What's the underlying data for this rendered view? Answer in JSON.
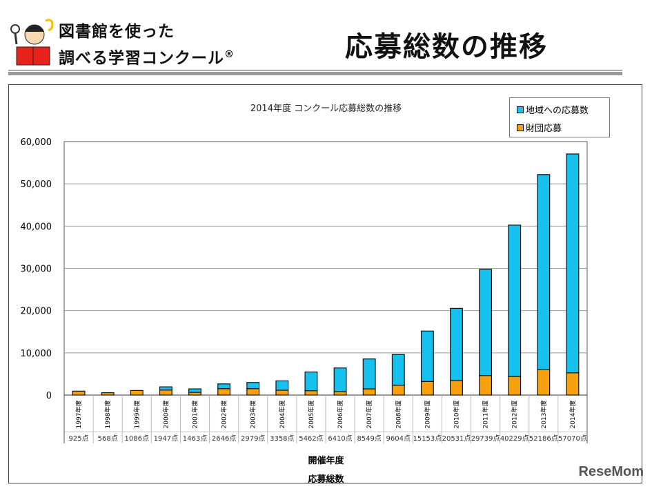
{
  "header": {
    "title_line1": "図書館を使った",
    "title_line2": "調べる学習コンクール",
    "registered": "®",
    "slide_title": "応募総数の推移"
  },
  "watermark": "ReseMom",
  "chart_data": {
    "type": "bar",
    "stacked": true,
    "title": "2014年度 コンクール応募総数の推移",
    "xlabel": "開催年度",
    "table_label": "応募総数",
    "ylim": [
      0,
      60000
    ],
    "yticks": [
      "0",
      "10,000",
      "20,000",
      "30,000",
      "40,000",
      "50,000",
      "60,000"
    ],
    "grid": true,
    "legend_position": "top-right",
    "categories": [
      "1997年度",
      "1998年度",
      "1999年度",
      "2000年度",
      "2001年度",
      "2002年度",
      "2003年度",
      "2004年度",
      "2005年度",
      "2006年度",
      "2007年度",
      "2008年度",
      "2009年度",
      "2010年度",
      "2011年度",
      "2012年度",
      "2013年度",
      "2014年度"
    ],
    "totals_labels": [
      "925点",
      "568点",
      "1086点",
      "1947点",
      "1463点",
      "2646点",
      "2979点",
      "3358点",
      "5462点",
      "6410点",
      "8549点",
      "9604点",
      "15153点",
      "20531点",
      "29739点",
      "40229点",
      "52186点",
      "57070点"
    ],
    "totals": [
      925,
      568,
      1086,
      1947,
      1463,
      2646,
      2979,
      3358,
      5462,
      6410,
      8549,
      9604,
      15153,
      20531,
      29739,
      40229,
      52186,
      57070
    ],
    "series": [
      {
        "name": "財団応募",
        "color": "#f7a10e",
        "values": [
          925,
          568,
          1086,
          1200,
          650,
          1520,
          1520,
          1150,
          1040,
          820,
          1470,
          2340,
          3210,
          3430,
          4630,
          4410,
          5990,
          5280
        ]
      },
      {
        "name": "地域への応募数",
        "color": "#16c1f0",
        "values": [
          0,
          0,
          0,
          747,
          813,
          1126,
          1459,
          2208,
          4422,
          5590,
          7079,
          7264,
          11943,
          17101,
          25109,
          35819,
          46196,
          51790
        ]
      }
    ]
  }
}
